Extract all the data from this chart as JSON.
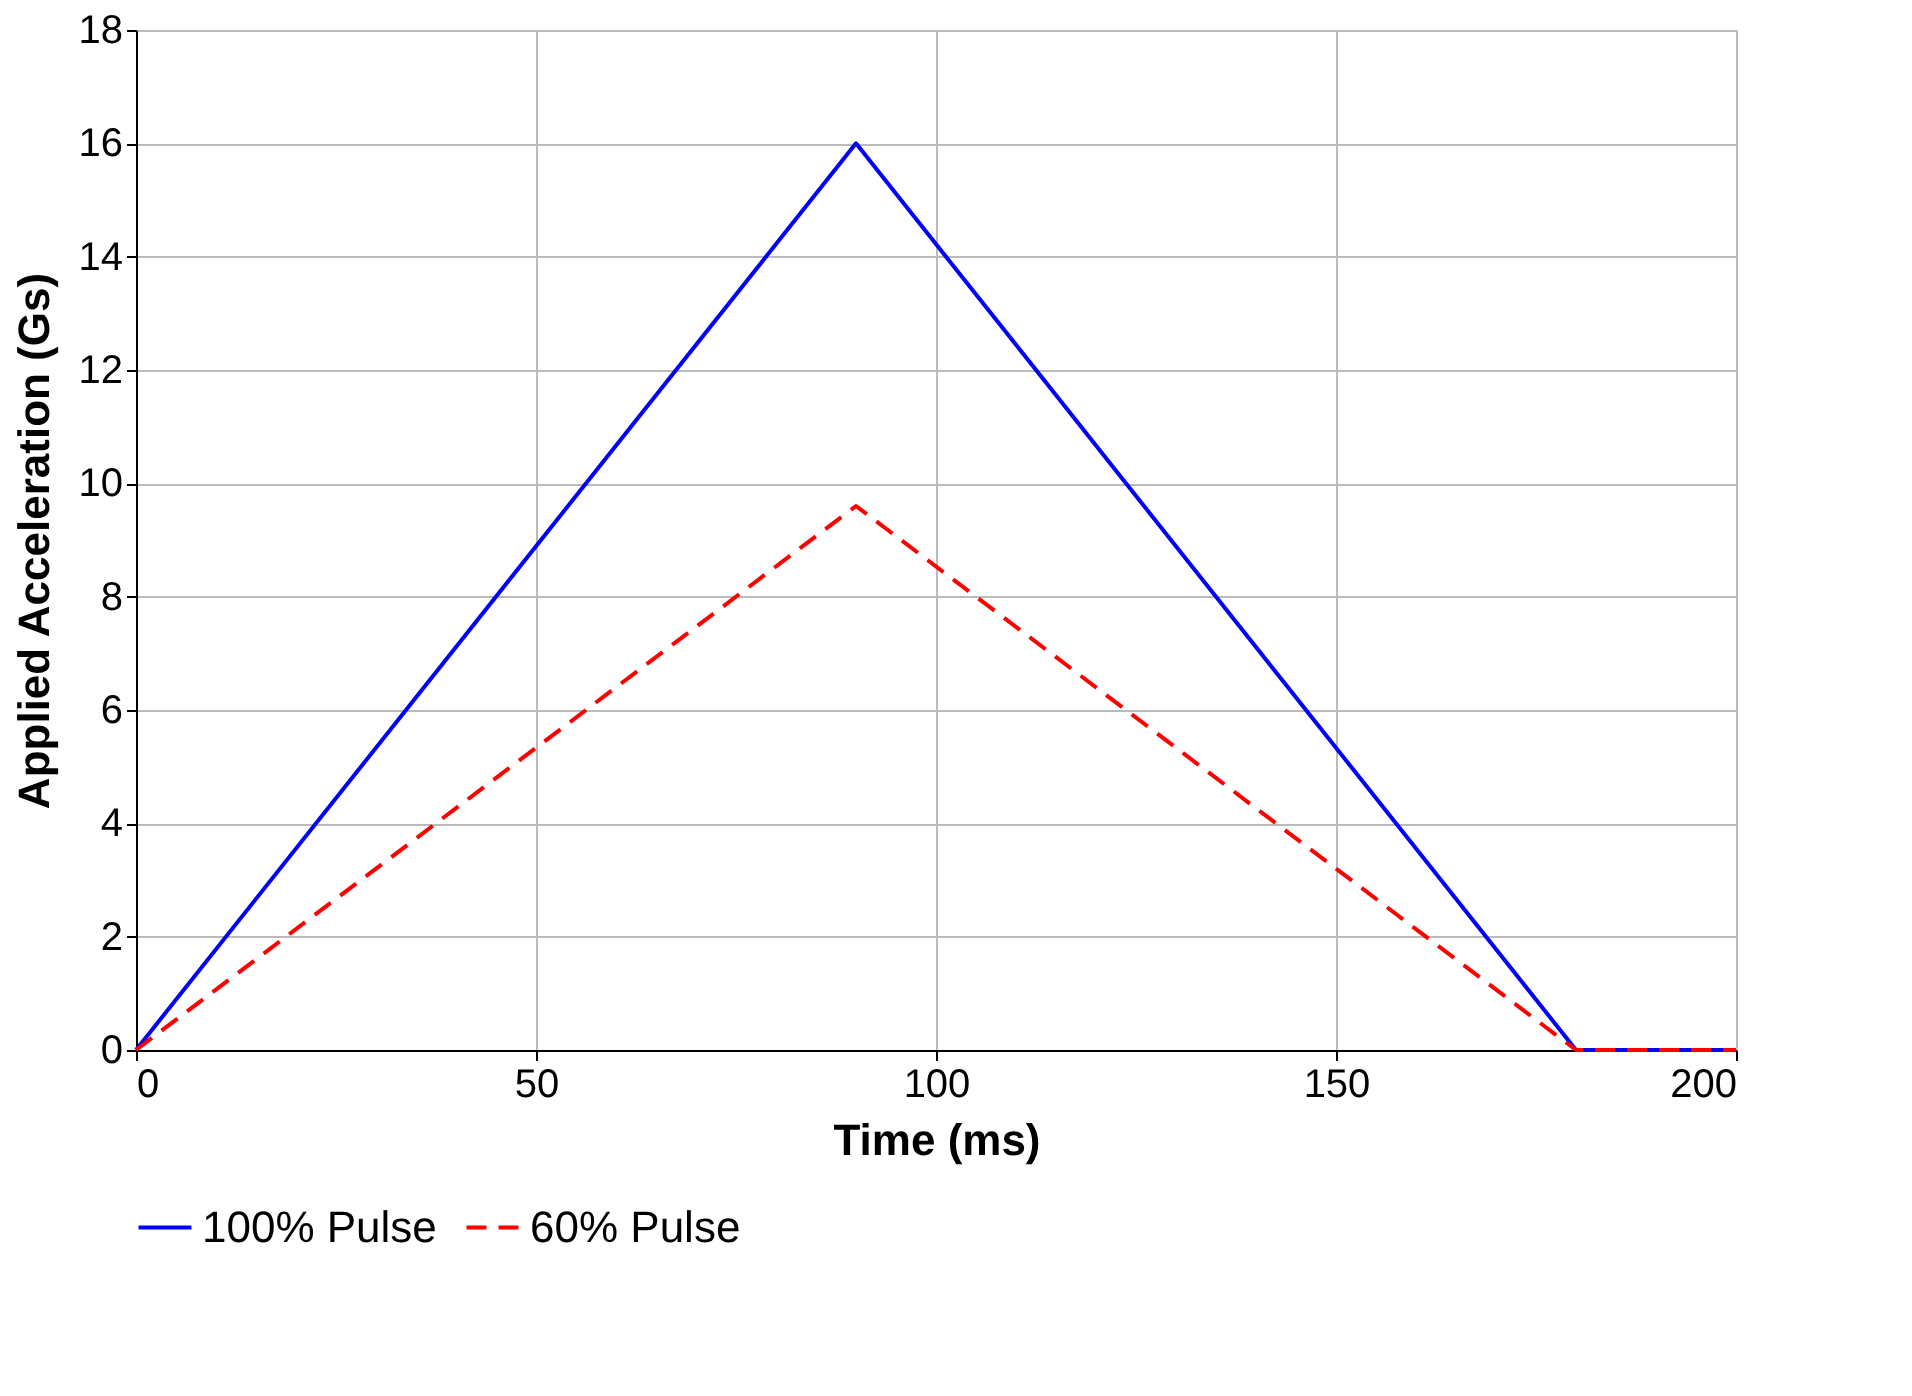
{
  "chart_data": {
    "type": "line",
    "xlabel": "Time (ms)",
    "ylabel": "Applied Acceleration (Gs)",
    "x": [
      0,
      90,
      180,
      200
    ],
    "series": [
      {
        "name": "100% Pulse",
        "color": "#0000ff",
        "values": [
          0,
          16,
          0,
          0
        ],
        "line_style": "solid"
      },
      {
        "name": "60% Pulse",
        "color": "#ff0000",
        "values": [
          0,
          9.6,
          0,
          0
        ],
        "line_style": "dashed"
      }
    ],
    "xlim": [
      0,
      200
    ],
    "xticks": [
      0,
      50,
      100,
      150,
      200
    ],
    "ylim": [
      0,
      18
    ],
    "yticks": [
      0,
      2,
      4,
      6,
      8,
      10,
      12,
      14,
      16,
      18
    ],
    "grid": true,
    "legend": "bottom"
  }
}
